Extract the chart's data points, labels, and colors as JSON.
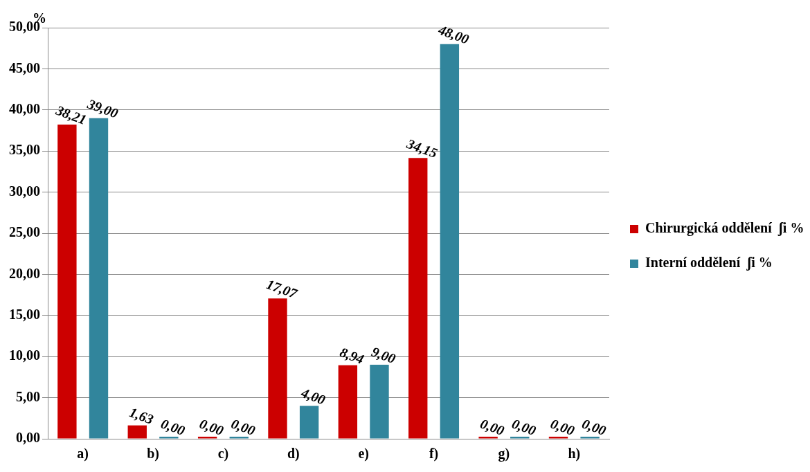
{
  "chart_data": {
    "type": "bar",
    "ylabel": "%",
    "categories": [
      "a)",
      "b)",
      "c)",
      "d)",
      "e)",
      "f)",
      "g)",
      "h)"
    ],
    "series": [
      {
        "name": "Chirurgická oddělení  ʃi %",
        "color": "#cc0000",
        "values": [
          38.21,
          1.63,
          0,
          17.07,
          8.94,
          34.15,
          0,
          0
        ],
        "value_labels": [
          "38,21",
          "1,63",
          "0,00",
          "17,07",
          "8,94",
          "34,15",
          "0,00",
          "0,00"
        ]
      },
      {
        "name": "Interní oddělení  ʃi %",
        "color": "#31859c",
        "values": [
          39,
          0,
          0,
          4,
          9,
          48,
          0,
          0
        ],
        "value_labels": [
          "39,00",
          "0,00",
          "0,00",
          "4,00",
          "9,00",
          "48,00",
          "0,00",
          "0,00"
        ]
      }
    ],
    "ylim": [
      0,
      50
    ],
    "yticks": [
      {
        "value": 0,
        "label": "0,00"
      },
      {
        "value": 5,
        "label": "5,00"
      },
      {
        "value": 10,
        "label": "10,00"
      },
      {
        "value": 15,
        "label": "15,00"
      },
      {
        "value": 20,
        "label": "20,00"
      },
      {
        "value": 25,
        "label": "25,00"
      },
      {
        "value": 30,
        "label": "30,00"
      },
      {
        "value": 35,
        "label": "35,00"
      },
      {
        "value": 40,
        "label": "40,00"
      },
      {
        "value": 45,
        "label": "45,00"
      },
      {
        "value": 50,
        "label": "50,00"
      }
    ],
    "grid": "y",
    "legend": "right"
  }
}
